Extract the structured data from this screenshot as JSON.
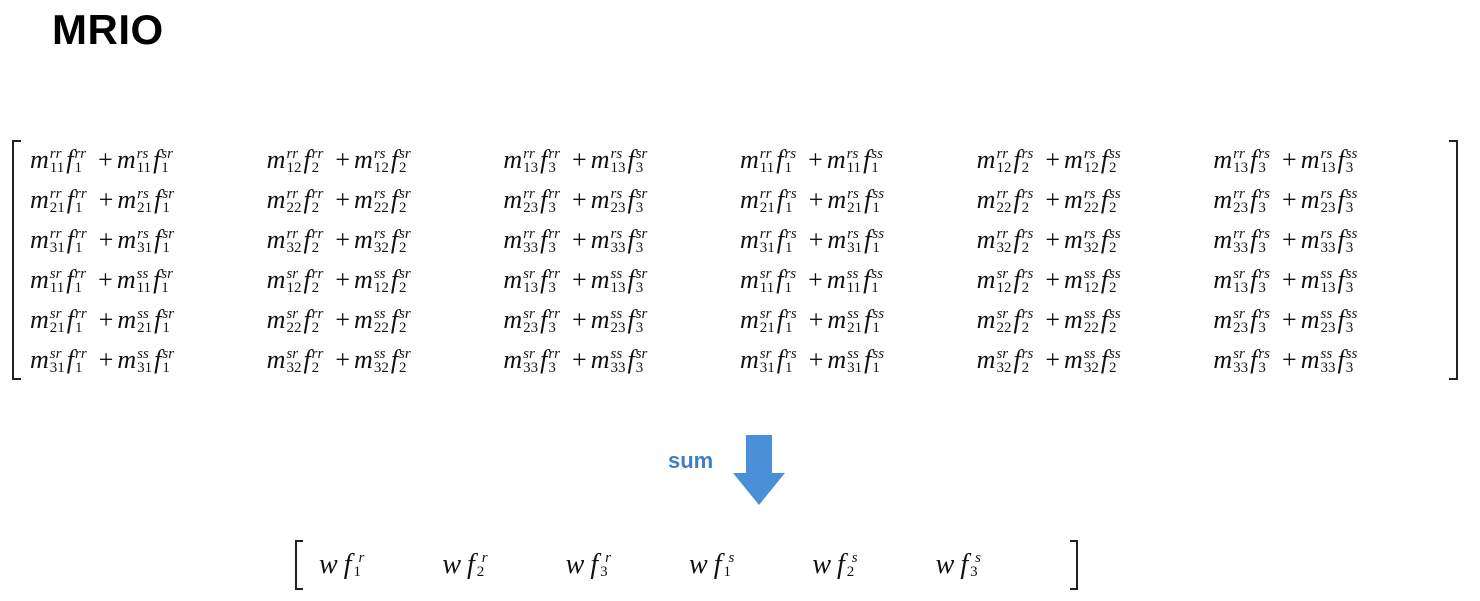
{
  "slide": {
    "title": "MRIO",
    "sum_label": "sum"
  },
  "colors": {
    "accent": "#3f7fc8",
    "arrow": "#4a90d9",
    "text": "#111111"
  },
  "matrix": {
    "rows": [
      [
        {
          "a": {
            "sup": "rr",
            "sub": "11"
          },
          "b": {
            "sup": "rr",
            "sub": "1"
          },
          "c": {
            "sup": "rs",
            "sub": "11"
          },
          "d": {
            "sup": "sr",
            "sub": "1"
          }
        },
        {
          "a": {
            "sup": "rr",
            "sub": "12"
          },
          "b": {
            "sup": "rr",
            "sub": "2"
          },
          "c": {
            "sup": "rs",
            "sub": "12"
          },
          "d": {
            "sup": "sr",
            "sub": "2"
          }
        },
        {
          "a": {
            "sup": "rr",
            "sub": "13"
          },
          "b": {
            "sup": "rr",
            "sub": "3"
          },
          "c": {
            "sup": "rs",
            "sub": "13"
          },
          "d": {
            "sup": "sr",
            "sub": "3"
          }
        },
        {
          "a": {
            "sup": "rr",
            "sub": "11"
          },
          "b": {
            "sup": "rs",
            "sub": "1"
          },
          "c": {
            "sup": "rs",
            "sub": "11"
          },
          "d": {
            "sup": "ss",
            "sub": "1"
          }
        },
        {
          "a": {
            "sup": "rr",
            "sub": "12"
          },
          "b": {
            "sup": "rs",
            "sub": "2"
          },
          "c": {
            "sup": "rs",
            "sub": "12"
          },
          "d": {
            "sup": "ss",
            "sub": "2"
          }
        },
        {
          "a": {
            "sup": "rr",
            "sub": "13"
          },
          "b": {
            "sup": "rs",
            "sub": "3"
          },
          "c": {
            "sup": "rs",
            "sub": "13"
          },
          "d": {
            "sup": "ss",
            "sub": "3"
          }
        }
      ],
      [
        {
          "a": {
            "sup": "rr",
            "sub": "21"
          },
          "b": {
            "sup": "rr",
            "sub": "1"
          },
          "c": {
            "sup": "rs",
            "sub": "21"
          },
          "d": {
            "sup": "sr",
            "sub": "1"
          }
        },
        {
          "a": {
            "sup": "rr",
            "sub": "22"
          },
          "b": {
            "sup": "rr",
            "sub": "2"
          },
          "c": {
            "sup": "rs",
            "sub": "22"
          },
          "d": {
            "sup": "sr",
            "sub": "2"
          }
        },
        {
          "a": {
            "sup": "rr",
            "sub": "23"
          },
          "b": {
            "sup": "rr",
            "sub": "3"
          },
          "c": {
            "sup": "rs",
            "sub": "23"
          },
          "d": {
            "sup": "sr",
            "sub": "3"
          }
        },
        {
          "a": {
            "sup": "rr",
            "sub": "21"
          },
          "b": {
            "sup": "rs",
            "sub": "1"
          },
          "c": {
            "sup": "rs",
            "sub": "21"
          },
          "d": {
            "sup": "ss",
            "sub": "1"
          }
        },
        {
          "a": {
            "sup": "rr",
            "sub": "22"
          },
          "b": {
            "sup": "rs",
            "sub": "2"
          },
          "c": {
            "sup": "rs",
            "sub": "22"
          },
          "d": {
            "sup": "ss",
            "sub": "2"
          }
        },
        {
          "a": {
            "sup": "rr",
            "sub": "23"
          },
          "b": {
            "sup": "rs",
            "sub": "3"
          },
          "c": {
            "sup": "rs",
            "sub": "23"
          },
          "d": {
            "sup": "ss",
            "sub": "3"
          }
        }
      ],
      [
        {
          "a": {
            "sup": "rr",
            "sub": "31"
          },
          "b": {
            "sup": "rr",
            "sub": "1"
          },
          "c": {
            "sup": "rs",
            "sub": "31"
          },
          "d": {
            "sup": "sr",
            "sub": "1"
          }
        },
        {
          "a": {
            "sup": "rr",
            "sub": "32"
          },
          "b": {
            "sup": "rr",
            "sub": "2"
          },
          "c": {
            "sup": "rs",
            "sub": "32"
          },
          "d": {
            "sup": "sr",
            "sub": "2"
          }
        },
        {
          "a": {
            "sup": "rr",
            "sub": "33"
          },
          "b": {
            "sup": "rr",
            "sub": "3"
          },
          "c": {
            "sup": "rs",
            "sub": "33"
          },
          "d": {
            "sup": "sr",
            "sub": "3"
          }
        },
        {
          "a": {
            "sup": "rr",
            "sub": "31"
          },
          "b": {
            "sup": "rs",
            "sub": "1"
          },
          "c": {
            "sup": "rs",
            "sub": "31"
          },
          "d": {
            "sup": "ss",
            "sub": "1"
          }
        },
        {
          "a": {
            "sup": "rr",
            "sub": "32"
          },
          "b": {
            "sup": "rs",
            "sub": "2"
          },
          "c": {
            "sup": "rs",
            "sub": "32"
          },
          "d": {
            "sup": "ss",
            "sub": "2"
          }
        },
        {
          "a": {
            "sup": "rr",
            "sub": "33"
          },
          "b": {
            "sup": "rs",
            "sub": "3"
          },
          "c": {
            "sup": "rs",
            "sub": "33"
          },
          "d": {
            "sup": "ss",
            "sub": "3"
          }
        }
      ],
      [
        {
          "a": {
            "sup": "sr",
            "sub": "11"
          },
          "b": {
            "sup": "rr",
            "sub": "1"
          },
          "c": {
            "sup": "ss",
            "sub": "11"
          },
          "d": {
            "sup": "sr",
            "sub": "1"
          }
        },
        {
          "a": {
            "sup": "sr",
            "sub": "12"
          },
          "b": {
            "sup": "rr",
            "sub": "2"
          },
          "c": {
            "sup": "ss",
            "sub": "12"
          },
          "d": {
            "sup": "sr",
            "sub": "2"
          }
        },
        {
          "a": {
            "sup": "sr",
            "sub": "13"
          },
          "b": {
            "sup": "rr",
            "sub": "3"
          },
          "c": {
            "sup": "ss",
            "sub": "13"
          },
          "d": {
            "sup": "sr",
            "sub": "3"
          }
        },
        {
          "a": {
            "sup": "sr",
            "sub": "11"
          },
          "b": {
            "sup": "rs",
            "sub": "1"
          },
          "c": {
            "sup": "ss",
            "sub": "11"
          },
          "d": {
            "sup": "ss",
            "sub": "1"
          }
        },
        {
          "a": {
            "sup": "sr",
            "sub": "12"
          },
          "b": {
            "sup": "rs",
            "sub": "2"
          },
          "c": {
            "sup": "ss",
            "sub": "12"
          },
          "d": {
            "sup": "ss",
            "sub": "2"
          }
        },
        {
          "a": {
            "sup": "sr",
            "sub": "13"
          },
          "b": {
            "sup": "rs",
            "sub": "3"
          },
          "c": {
            "sup": "ss",
            "sub": "13"
          },
          "d": {
            "sup": "ss",
            "sub": "3"
          }
        }
      ],
      [
        {
          "a": {
            "sup": "sr",
            "sub": "21"
          },
          "b": {
            "sup": "rr",
            "sub": "1"
          },
          "c": {
            "sup": "ss",
            "sub": "21"
          },
          "d": {
            "sup": "sr",
            "sub": "1"
          }
        },
        {
          "a": {
            "sup": "sr",
            "sub": "22"
          },
          "b": {
            "sup": "rr",
            "sub": "2"
          },
          "c": {
            "sup": "ss",
            "sub": "22"
          },
          "d": {
            "sup": "sr",
            "sub": "2"
          }
        },
        {
          "a": {
            "sup": "sr",
            "sub": "23"
          },
          "b": {
            "sup": "rr",
            "sub": "3"
          },
          "c": {
            "sup": "ss",
            "sub": "23"
          },
          "d": {
            "sup": "sr",
            "sub": "3"
          }
        },
        {
          "a": {
            "sup": "sr",
            "sub": "21"
          },
          "b": {
            "sup": "rs",
            "sub": "1"
          },
          "c": {
            "sup": "ss",
            "sub": "21"
          },
          "d": {
            "sup": "ss",
            "sub": "1"
          }
        },
        {
          "a": {
            "sup": "sr",
            "sub": "22"
          },
          "b": {
            "sup": "rs",
            "sub": "2"
          },
          "c": {
            "sup": "ss",
            "sub": "22"
          },
          "d": {
            "sup": "ss",
            "sub": "2"
          }
        },
        {
          "a": {
            "sup": "sr",
            "sub": "23"
          },
          "b": {
            "sup": "rs",
            "sub": "3"
          },
          "c": {
            "sup": "ss",
            "sub": "23"
          },
          "d": {
            "sup": "ss",
            "sub": "3"
          }
        }
      ],
      [
        {
          "a": {
            "sup": "sr",
            "sub": "31"
          },
          "b": {
            "sup": "rr",
            "sub": "1"
          },
          "c": {
            "sup": "ss",
            "sub": "31"
          },
          "d": {
            "sup": "sr",
            "sub": "1"
          }
        },
        {
          "a": {
            "sup": "sr",
            "sub": "32"
          },
          "b": {
            "sup": "rr",
            "sub": "2"
          },
          "c": {
            "sup": "ss",
            "sub": "32"
          },
          "d": {
            "sup": "sr",
            "sub": "2"
          }
        },
        {
          "a": {
            "sup": "sr",
            "sub": "33"
          },
          "b": {
            "sup": "rr",
            "sub": "3"
          },
          "c": {
            "sup": "ss",
            "sub": "33"
          },
          "d": {
            "sup": "sr",
            "sub": "3"
          }
        },
        {
          "a": {
            "sup": "sr",
            "sub": "31"
          },
          "b": {
            "sup": "rs",
            "sub": "1"
          },
          "c": {
            "sup": "ss",
            "sub": "31"
          },
          "d": {
            "sup": "ss",
            "sub": "1"
          }
        },
        {
          "a": {
            "sup": "sr",
            "sub": "32"
          },
          "b": {
            "sup": "rs",
            "sub": "2"
          },
          "c": {
            "sup": "ss",
            "sub": "32"
          },
          "d": {
            "sup": "ss",
            "sub": "2"
          }
        },
        {
          "a": {
            "sup": "sr",
            "sub": "33"
          },
          "b": {
            "sup": "rs",
            "sub": "3"
          },
          "c": {
            "sup": "ss",
            "sub": "33"
          },
          "d": {
            "sup": "ss",
            "sub": "3"
          }
        }
      ]
    ]
  },
  "vector": {
    "items": [
      {
        "sub": "1",
        "sup": "r"
      },
      {
        "sub": "2",
        "sup": "r"
      },
      {
        "sub": "3",
        "sup": "r"
      },
      {
        "sub": "1",
        "sup": "s"
      },
      {
        "sub": "2",
        "sup": "s"
      },
      {
        "sub": "3",
        "sup": "s"
      }
    ]
  },
  "symbols": {
    "m": "m",
    "f": "f",
    "w": "w",
    "plus": "+"
  },
  "icons": {
    "arrow": "down-arrow-icon"
  }
}
